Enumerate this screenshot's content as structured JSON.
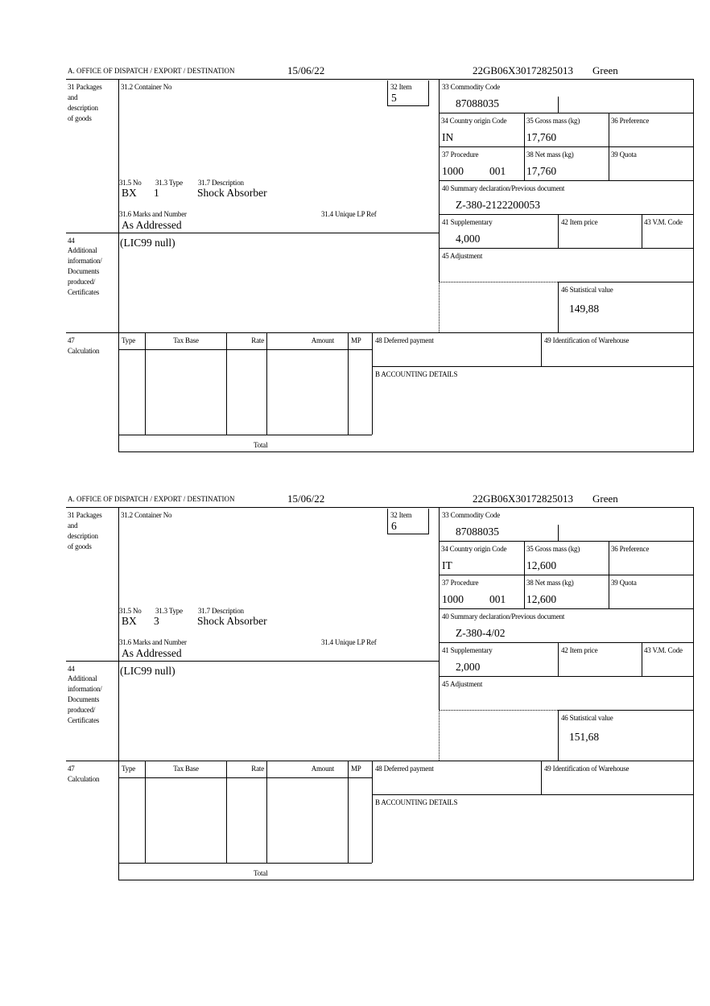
{
  "labels": {
    "office": "A. OFFICE OF DISPATCH / EXPORT / DESTINATION",
    "box31": [
      "31 Packages",
      "and",
      "description",
      "of goods"
    ],
    "container_no": "31.2 Container No",
    "item": "32 Item",
    "commodity_code": "33 Commodity Code",
    "country_origin": "34 Country origin Code",
    "gross_mass": "35 Gross mass (kg)",
    "preference": "36 Preference",
    "procedure": "37 Procedure",
    "net_mass": "38 Net mass (kg)",
    "quota": "39 Quota",
    "summary_declaration": "40 Summary declaration/Previous document",
    "supplementary": "41 Supplementary",
    "item_price": "42 Item price",
    "vm_code": "43 V.M. Code",
    "adjustment": "45 Adjustment",
    "statistical_value": "46 Statistical value",
    "no": "31.5 No",
    "type": "31.3 Type",
    "description": "31.7 Description",
    "marks": "31.6 Marks and Number",
    "unique_lp_ref": "31.4 Unique LP Ref",
    "box44": [
      "44",
      "Additional",
      "information/",
      "Documents",
      "produced/",
      "Certificates"
    ],
    "box47": [
      "47",
      "Calculation"
    ],
    "calc_headers": [
      "Type",
      "Tax Base",
      "Rate",
      "Amount",
      "MP"
    ],
    "deferred_payment": "48 Deferred payment",
    "warehouse": "49 Identification of Warehouse",
    "accounting": "B ACCOUNTING DETAILS",
    "total": "Total"
  },
  "forms": [
    {
      "date": "15/06/22",
      "reference": "22GB06X30172825013",
      "route": "Green",
      "item": "5",
      "commodity_code": "87088035",
      "country_origin": "IN",
      "gross_mass": "17,760",
      "procedure": "1000",
      "procedure_extra": "001",
      "net_mass": "17,760",
      "summary_declaration": "Z-380-2122200053",
      "supplementary": "4,000",
      "statistical_value": "149,88",
      "package_kind": "BX",
      "package_count": "1",
      "description": "Shock Absorber",
      "marks": "As Addressed",
      "additional_info": "(LIC99 null)"
    },
    {
      "date": "15/06/22",
      "reference": "22GB06X30172825013",
      "route": "Green",
      "item": "6",
      "commodity_code": "87088035",
      "country_origin": "IT",
      "gross_mass": "12,600",
      "procedure": "1000",
      "procedure_extra": "001",
      "net_mass": "12,600",
      "summary_declaration": "Z-380-4/02",
      "supplementary": "2,000",
      "statistical_value": "151,68",
      "package_kind": "BX",
      "package_count": "3",
      "description": "Shock Absorber",
      "marks": "As Addressed",
      "additional_info": "(LIC99 null)"
    }
  ]
}
